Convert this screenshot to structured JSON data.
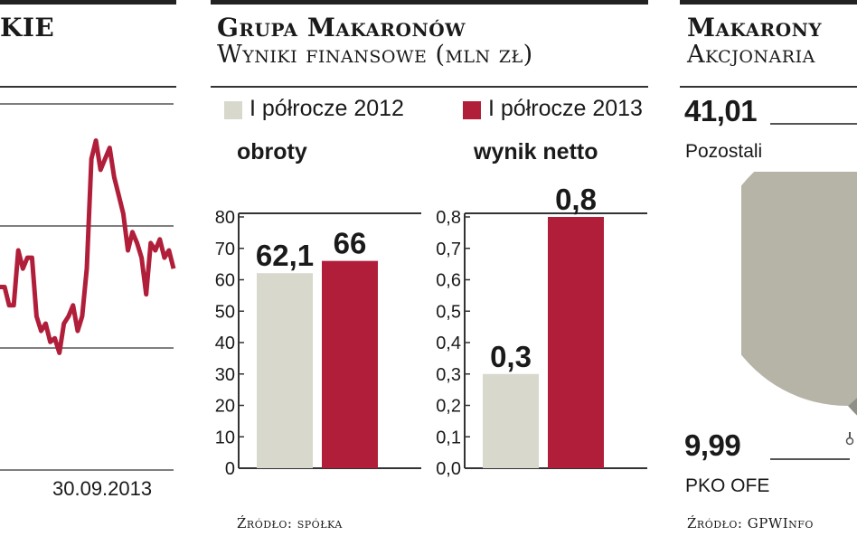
{
  "colors": {
    "grey_bar": "#d8d9cc",
    "red_bar": "#b01e3a",
    "pie_light": "#b5b4a6",
    "pie_dark": "#8e8f86",
    "axis": "#333333"
  },
  "left_panel": {
    "title_fragment": "KIE",
    "date_label": "30.09.2013",
    "chart_data": {
      "type": "line",
      "title": "",
      "xlabel": "",
      "ylabel": "",
      "x_end_label": "30.09.2013",
      "series": [
        {
          "values": [
            0.5,
            0.5,
            0.45,
            0.45,
            0.6,
            0.55,
            0.58,
            0.58,
            0.42,
            0.38,
            0.4,
            0.35,
            0.36,
            0.32,
            0.4,
            0.42,
            0.45,
            0.38,
            0.42,
            0.55,
            0.85,
            0.9,
            0.82,
            0.85,
            0.88,
            0.8,
            0.75,
            0.7,
            0.6,
            0.65,
            0.62,
            0.58,
            0.48,
            0.62,
            0.6,
            0.63,
            0.58,
            0.6,
            0.55
          ]
        }
      ]
    }
  },
  "middle_panel": {
    "title": "Grupa Makaronów",
    "subtitle": "Wyniki finansowe (mln zł)",
    "legend": [
      {
        "label": "I półrocze 2012",
        "color": "#d8d9cc"
      },
      {
        "label": "I półrocze 2013",
        "color": "#b01e3a"
      }
    ],
    "source": "Źródło: spółka",
    "chart_data": [
      {
        "type": "bar",
        "title": "obroty",
        "categories": [
          "I półrocze 2012",
          "I półrocze 2013"
        ],
        "values": [
          62.1,
          66
        ],
        "value_labels": [
          "62,1",
          "66"
        ],
        "ylim": [
          0,
          80
        ],
        "yticks": [
          "0",
          "10",
          "20",
          "30",
          "40",
          "50",
          "60",
          "70",
          "80"
        ]
      },
      {
        "type": "bar",
        "title": "wynik netto",
        "categories": [
          "I półrocze 2012",
          "I półrocze 2013"
        ],
        "values": [
          0.3,
          0.8
        ],
        "value_labels": [
          "0,3",
          "0,8"
        ],
        "ylim": [
          0,
          0.8
        ],
        "yticks": [
          "0,0",
          "0,1",
          "0,2",
          "0,3",
          "0,4",
          "0,5",
          "0,6",
          "0,7",
          "0,8"
        ]
      }
    ]
  },
  "right_panel": {
    "title": "Makarony",
    "subtitle": "Akcjonaria",
    "source": "Źródło: GPWInfo",
    "chart_data": {
      "type": "pie",
      "title": "",
      "slices": [
        {
          "label": "Pozostali",
          "value": 41.01,
          "value_label": "41,01"
        },
        {
          "label": "PKO OFE",
          "value": 9.99,
          "value_label": "9,99"
        }
      ]
    }
  }
}
